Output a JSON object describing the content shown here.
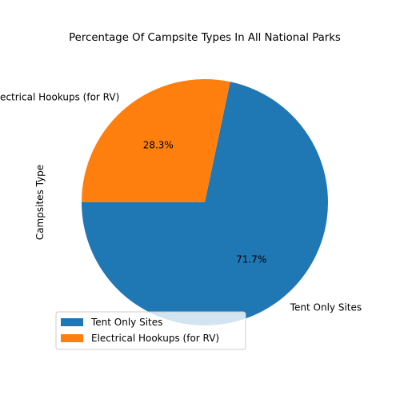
{
  "chart_data": {
    "type": "pie",
    "title": "Percentage Of Campsite Types In All National Parks",
    "ylabel": "Campsites Type",
    "labels": [
      "Tent Only Sites",
      "Electrical Hookups (for RV)"
    ],
    "values": [
      71.7,
      28.3
    ],
    "pct_labels": [
      "71.7%",
      "28.3%"
    ],
    "colors": [
      "#1f77b4",
      "#ff7f0e"
    ],
    "legend": {
      "placement": "lower-left",
      "entries": [
        "Tent Only Sites",
        "Electrical Hookups (for RV)"
      ]
    }
  }
}
